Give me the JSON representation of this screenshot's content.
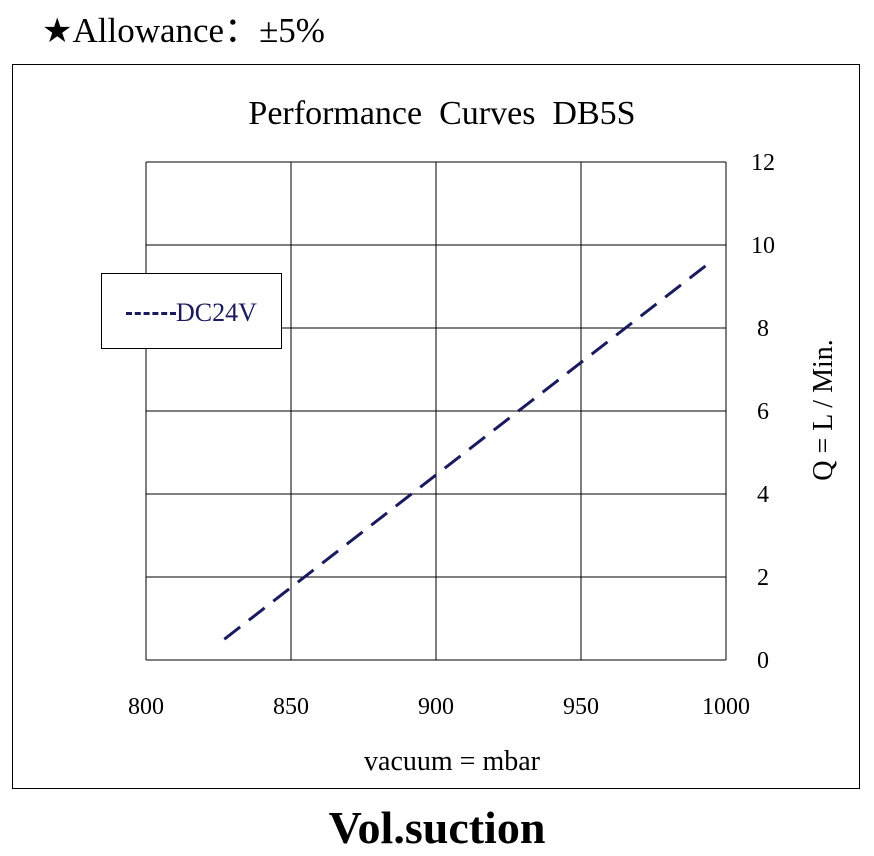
{
  "header": {
    "star": "★",
    "text": "Allowance：±5%"
  },
  "footer": {
    "text": "Vol.suction"
  },
  "colors": {
    "series": "#1a1a5e",
    "grid": "#000000"
  },
  "chart_data": {
    "type": "line",
    "title": "Performance  Curves  DB5S",
    "xlabel": "vacuum = mbar",
    "ylabel": "Q = L / Min.",
    "xlim": [
      800,
      1000
    ],
    "ylim": [
      0,
      12
    ],
    "xticks": [
      800,
      850,
      900,
      950,
      1000
    ],
    "yticks": [
      0,
      2,
      4,
      6,
      8,
      10,
      12
    ],
    "y_axis_side": "right",
    "grid": true,
    "legend_position": "upper-left",
    "series": [
      {
        "name": "DC24V",
        "line_style": "dashed",
        "x": [
          827,
          993
        ],
        "y": [
          0.5,
          9.5
        ]
      }
    ]
  }
}
